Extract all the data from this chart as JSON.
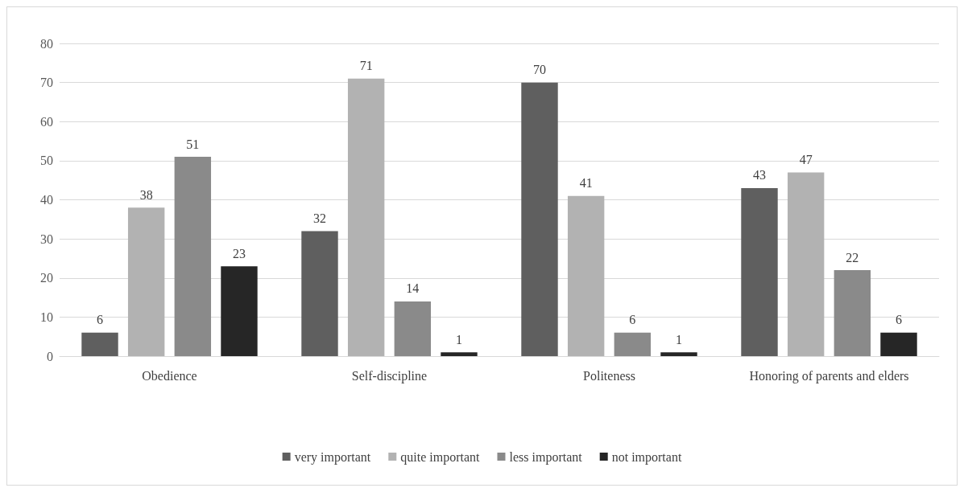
{
  "chart_data": {
    "type": "bar",
    "categories": [
      "Obedience",
      "Self-discipline",
      "Politeness",
      "Honoring of parents and elders"
    ],
    "series": [
      {
        "name": "very important",
        "color": "#5f5f5f",
        "values": [
          6,
          32,
          70,
          43
        ]
      },
      {
        "name": "quite important",
        "color": "#b2b2b2",
        "values": [
          38,
          71,
          41,
          47
        ]
      },
      {
        "name": "less important",
        "color": "#8a8a8a",
        "values": [
          51,
          14,
          6,
          22
        ]
      },
      {
        "name": "not important",
        "color": "#262626",
        "values": [
          23,
          1,
          1,
          6
        ]
      }
    ],
    "ylim": [
      0,
      80
    ],
    "yticks": [
      0,
      10,
      20,
      30,
      40,
      50,
      60,
      70,
      80
    ],
    "grid": "y",
    "legend": "bottom",
    "data_labels": true
  }
}
